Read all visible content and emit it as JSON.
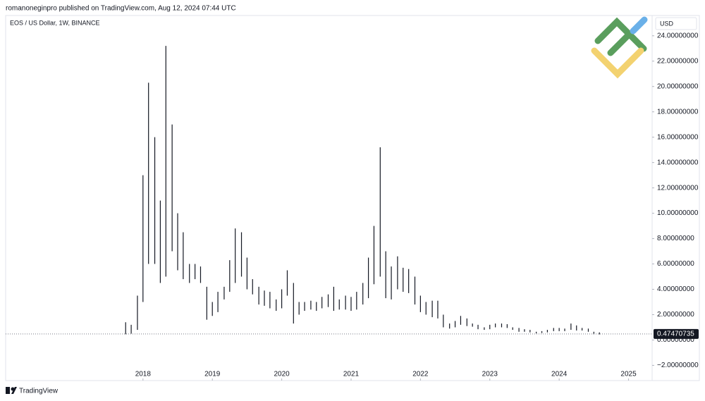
{
  "chart_data": {
    "type": "ohlc",
    "attribution": "romanoneginpro published on TradingView.com, Aug 12, 2024 07:44 UTC",
    "title": "EOS / US Dollar, 1W, BINANCE",
    "y_axis_label": "USD",
    "footer": "TradingView",
    "color": "#131722",
    "last_price": 0.47470735,
    "xlim": [
      2016.02,
      2025.34
    ],
    "xticks": [
      2018,
      2019,
      2020,
      2021,
      2022,
      2023,
      2024,
      2025
    ],
    "ylim": [
      -3.2,
      25.6
    ],
    "yticks": [
      {
        "value": -2,
        "label": "−2.00000000"
      },
      {
        "value": 0,
        "label": "0.00000000"
      },
      {
        "value": 2,
        "label": "2.00000000"
      },
      {
        "value": 4,
        "label": "4.00000000"
      },
      {
        "value": 6,
        "label": "6.00000000"
      },
      {
        "value": 8,
        "label": "8.00000000"
      },
      {
        "value": 10,
        "label": "10.00000000"
      },
      {
        "value": 12,
        "label": "12.00000000"
      },
      {
        "value": 14,
        "label": "14.00000000"
      },
      {
        "value": 16,
        "label": "16.00000000"
      },
      {
        "value": 18,
        "label": "18.00000000"
      },
      {
        "value": 20,
        "label": "20.00000000"
      },
      {
        "value": 22,
        "label": "22.00000000"
      },
      {
        "value": 24,
        "label": "24.00000000"
      }
    ],
    "x": [
      2017.75,
      2017.83,
      2017.92,
      2018.0,
      2018.08,
      2018.17,
      2018.25,
      2018.33,
      2018.42,
      2018.5,
      2018.58,
      2018.67,
      2018.75,
      2018.83,
      2018.92,
      2019.0,
      2019.08,
      2019.17,
      2019.25,
      2019.33,
      2019.42,
      2019.5,
      2019.58,
      2019.67,
      2019.75,
      2019.83,
      2019.92,
      2020.0,
      2020.08,
      2020.17,
      2020.25,
      2020.33,
      2020.42,
      2020.5,
      2020.58,
      2020.67,
      2020.75,
      2020.83,
      2020.92,
      2021.0,
      2021.08,
      2021.17,
      2021.25,
      2021.33,
      2021.42,
      2021.5,
      2021.58,
      2021.67,
      2021.75,
      2021.83,
      2021.92,
      2022.0,
      2022.08,
      2022.17,
      2022.25,
      2022.33,
      2022.42,
      2022.5,
      2022.58,
      2022.67,
      2022.75,
      2022.83,
      2022.92,
      2023.0,
      2023.08,
      2023.17,
      2023.25,
      2023.33,
      2023.42,
      2023.5,
      2023.58,
      2023.67,
      2023.75,
      2023.83,
      2023.92,
      2024.0,
      2024.08,
      2024.17,
      2024.25,
      2024.33,
      2024.42,
      2024.5,
      2024.58
    ],
    "high": [
      1.4,
      1.2,
      3.5,
      13,
      20.3,
      16,
      11,
      23.2,
      17,
      10,
      8.5,
      6,
      6,
      5.8,
      4.2,
      3,
      3.8,
      4.2,
      6.3,
      8.8,
      8.5,
      6.5,
      4.8,
      4.2,
      3.9,
      3.8,
      3.2,
      4.0,
      5.5,
      4.5,
      3.0,
      3.0,
      3.1,
      3.0,
      3.4,
      3.6,
      4.2,
      3.2,
      3.5,
      3.4,
      3.8,
      4.5,
      6.5,
      9,
      15.2,
      7,
      5.8,
      6.6,
      5.7,
      5.6,
      5,
      3.5,
      3,
      3.1,
      3.1,
      2.0,
      1.3,
      1.5,
      1.9,
      1.7,
      1.3,
      1.2,
      1.0,
      1.2,
      1.3,
      1.3,
      1.25,
      1.0,
      0.95,
      0.85,
      0.8,
      0.65,
      0.7,
      0.8,
      0.95,
      0.95,
      0.9,
      1.3,
      1.15,
      0.95,
      0.9,
      0.65,
      0.6
    ],
    "low": [
      0.45,
      0.5,
      0.8,
      3,
      6,
      6,
      4.5,
      5,
      7,
      5.5,
      4.8,
      4.5,
      4.8,
      4.5,
      1.6,
      1.9,
      2.2,
      3.2,
      3.8,
      4.5,
      5,
      4,
      3.6,
      2.8,
      2.7,
      2.5,
      2.3,
      2.5,
      3.5,
      1.3,
      2.0,
      2.3,
      2.4,
      2.3,
      2.5,
      2.6,
      2.3,
      2.4,
      2.4,
      2.3,
      2.4,
      2.8,
      3.3,
      4.4,
      5,
      3.3,
      3.2,
      4,
      3.8,
      3.7,
      2.8,
      2.2,
      2,
      1.8,
      1.7,
      1.0,
      0.9,
      1.0,
      1.2,
      1.1,
      1.05,
      0.85,
      0.8,
      0.85,
      1.0,
      1.0,
      0.95,
      0.8,
      0.65,
      0.65,
      0.6,
      0.52,
      0.55,
      0.6,
      0.7,
      0.7,
      0.7,
      0.8,
      0.75,
      0.75,
      0.65,
      0.45,
      0.44
    ]
  }
}
